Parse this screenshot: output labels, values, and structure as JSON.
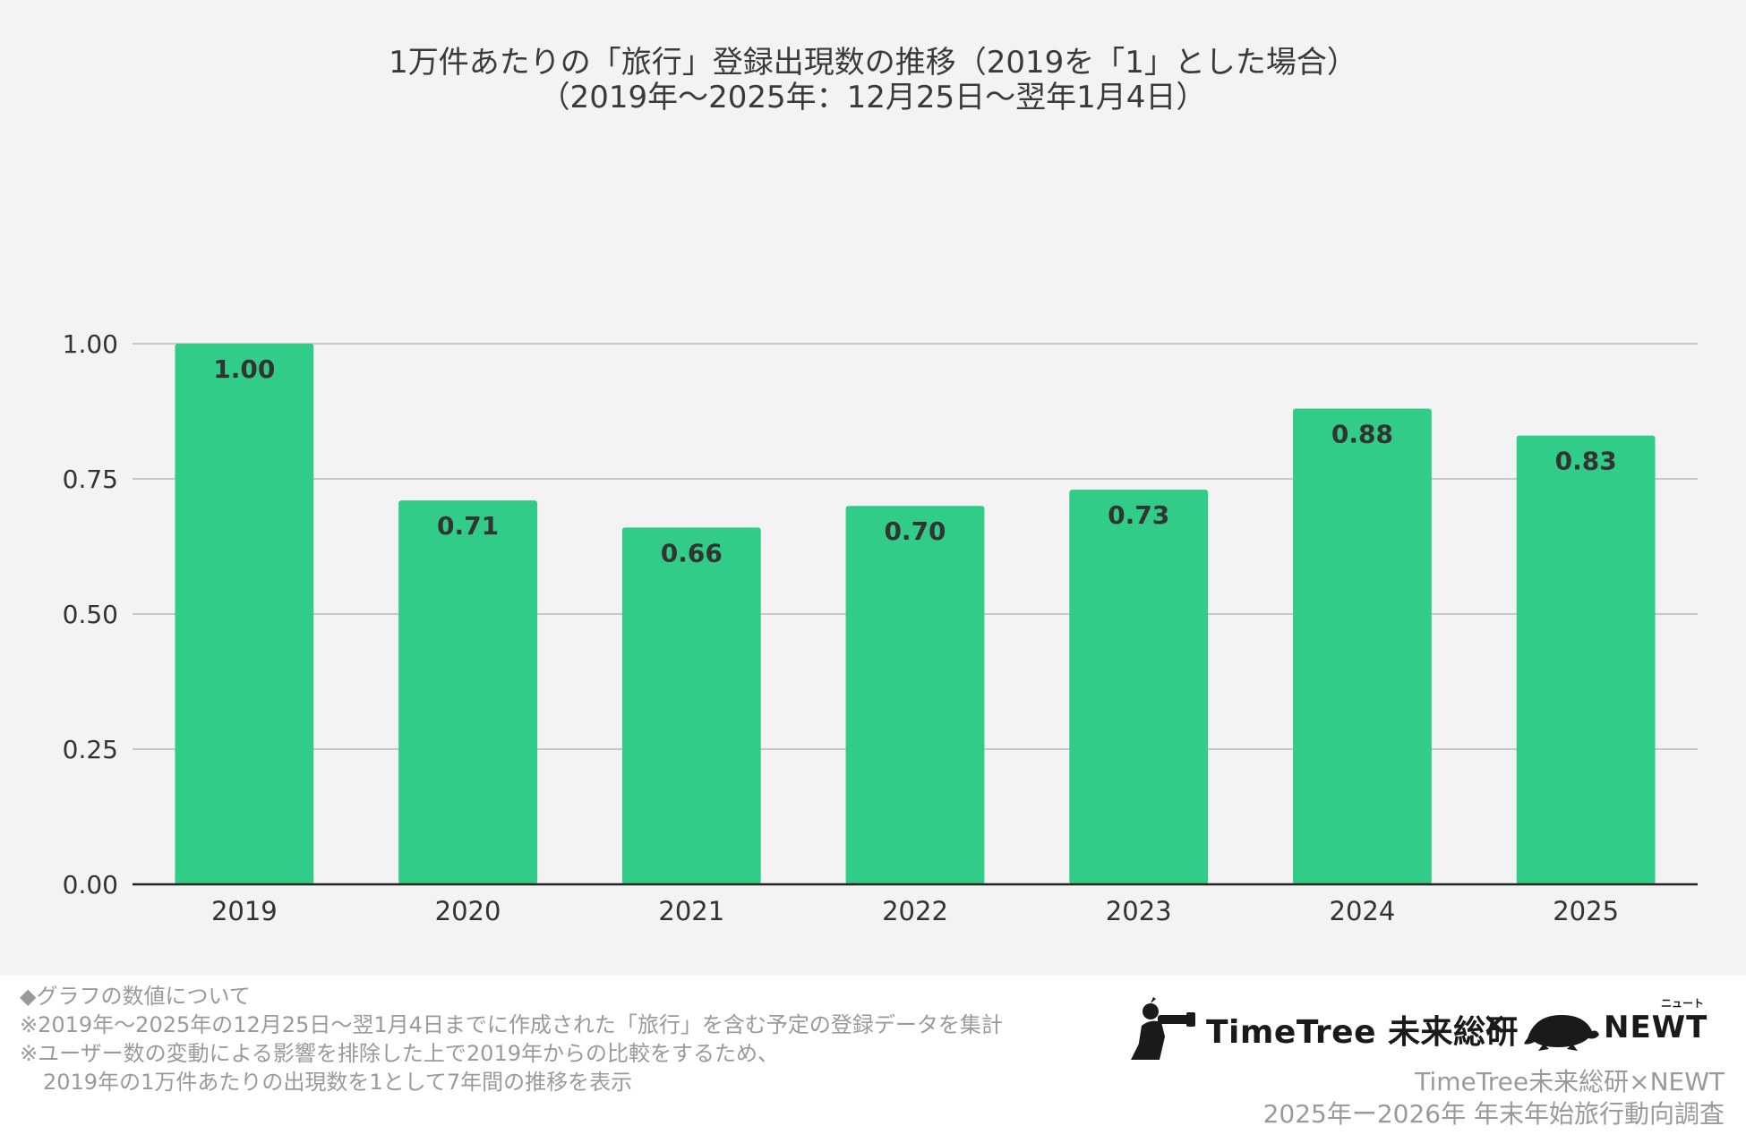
{
  "chart_data": {
    "type": "bar",
    "title": "1万件あたりの「旅行」登録出現数の推移（2019を「1」とした場合）",
    "subtitle": "（2019年〜2025年：12月25日〜翌年1月4日）",
    "categories": [
      "2019",
      "2020",
      "2021",
      "2022",
      "2023",
      "2024",
      "2025"
    ],
    "values": [
      1.0,
      0.71,
      0.66,
      0.7,
      0.73,
      0.88,
      0.83
    ],
    "data_labels": [
      "1.00",
      "0.71",
      "0.66",
      "0.70",
      "0.73",
      "0.88",
      "0.83"
    ],
    "yticks": [
      "0.00",
      "0.25",
      "0.50",
      "0.75",
      "1.00"
    ],
    "ytick_values": [
      0,
      0.25,
      0.5,
      0.75,
      1.0
    ],
    "ylim": [
      0,
      1.0
    ],
    "xlabel": "",
    "ylabel": "",
    "grid": true,
    "bar_color": "#31cc87",
    "label_color": "#333333"
  },
  "footnotes": {
    "heading": "◆グラフの数値について",
    "line1": "※2019年〜2025年の12月25日〜翌1月4日までに作成された「旅行」を含む予定の登録データを集計",
    "line2": "※ユーザー数の変動による影響を排除した上で2019年からの比較をするため、",
    "line3": "2019年の1万件あたりの出現数を1として7年間の推移を表示"
  },
  "logos": {
    "timetree": "TimeTree 未来総研",
    "separator": "×",
    "newt": "NEWT",
    "newt_ruby": "ニュート"
  },
  "credit": {
    "line1": "TimeTree未来総研×NEWT",
    "line2": "2025年ー2026年 年末年始旅行動向調査"
  }
}
